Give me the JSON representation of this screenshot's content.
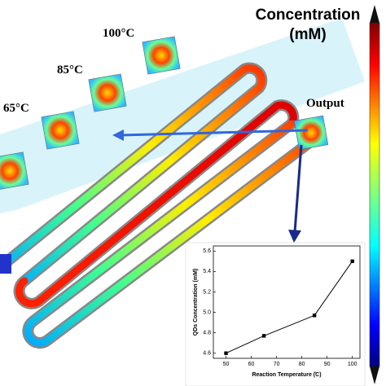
{
  "annotations": [
    "100°C",
    "85°C",
    "65°C",
    "Output"
  ],
  "colorbar": {
    "title_lines": [
      "Concentration",
      "(mM)"
    ]
  },
  "chart_data": {
    "type": "line",
    "x": [
      50,
      65,
      85,
      100
    ],
    "values": [
      4.6,
      4.77,
      4.97,
      5.5
    ],
    "color": "#000000",
    "xlabel": "Reaction Temperature (̊C)",
    "ylabel": "QDs Concentration (mM)",
    "xlim": [
      45,
      103
    ],
    "xticks": [
      50,
      60,
      70,
      80,
      90,
      100
    ],
    "ylim": [
      4.55,
      5.65
    ],
    "yticks": [
      4.6,
      4.8,
      {
        "value": 5.0,
        "label": "5.0"
      },
      5.2,
      5.4,
      5.6
    ]
  }
}
